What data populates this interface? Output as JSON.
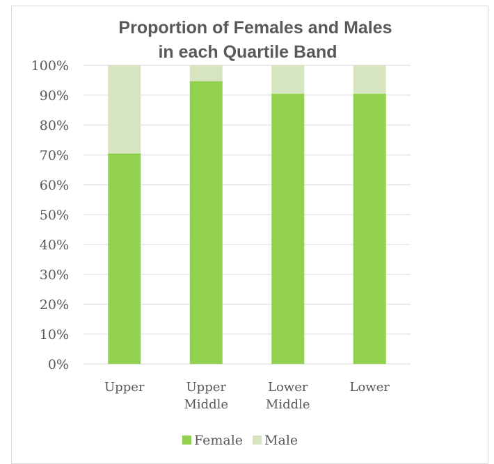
{
  "chart_data": {
    "type": "bar",
    "stacked": true,
    "title_lines": [
      "Proportion of Females and Males",
      "in each Quartile Band"
    ],
    "categories": [
      [
        "Upper"
      ],
      [
        "Upper",
        "Middle"
      ],
      [
        "Lower",
        "Middle"
      ],
      [
        "Lower"
      ]
    ],
    "series": [
      {
        "name": "Female",
        "color": "#92d050",
        "values": [
          70.5,
          94.7,
          90.5,
          90.5
        ]
      },
      {
        "name": "Male",
        "color": "#d6e5bf",
        "values": [
          29.5,
          5.3,
          9.5,
          9.5
        ]
      }
    ],
    "ylim": [
      0,
      100
    ],
    "yticks": [
      "0%",
      "10%",
      "20%",
      "30%",
      "40%",
      "50%",
      "60%",
      "70%",
      "80%",
      "90%",
      "100%"
    ],
    "grid": true,
    "legend_position": "bottom"
  }
}
